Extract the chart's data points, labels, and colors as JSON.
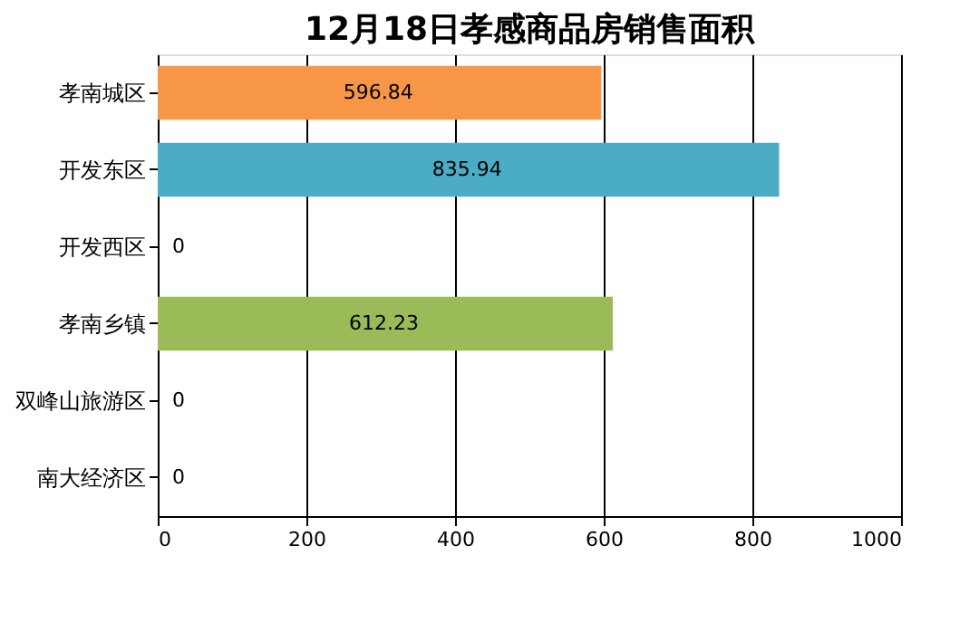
{
  "chart_data": {
    "type": "bar",
    "orientation": "horizontal",
    "title": "12月18日孝感商品房销售面积",
    "categories": [
      "孝南城区",
      "开发东区",
      "开发西区",
      "孝南乡镇",
      "双峰山旅游区",
      "南大经济区"
    ],
    "values": [
      596.84,
      835.94,
      0,
      612.23,
      0,
      0
    ],
    "colors": [
      "#f79646",
      "#4bacc6",
      "#8064a2",
      "#9bbb59",
      "#4f81bd",
      "#c0504d"
    ],
    "xlim": [
      0,
      1000
    ],
    "xticks": [
      0,
      200,
      400,
      600,
      800,
      1000
    ],
    "grid": "x",
    "data_labels": true
  }
}
